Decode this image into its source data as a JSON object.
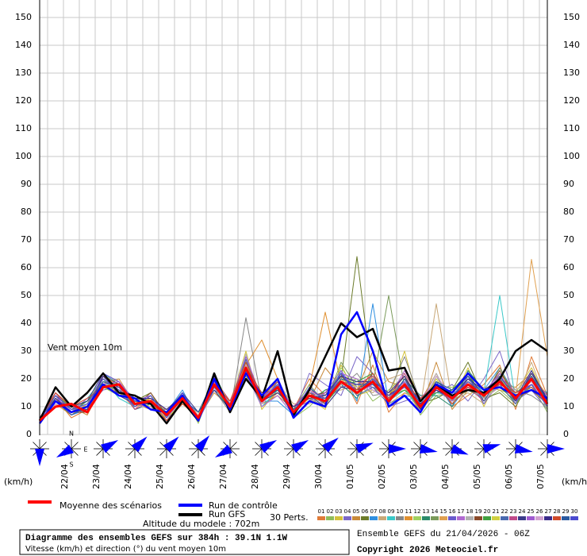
{
  "chart_data": {
    "type": "line",
    "annotation": "Vent moyen 10m",
    "y_unit_left": "(km/h)",
    "y_unit_right": "(km/h)",
    "ylim": [
      0,
      150
    ],
    "yticks": [
      0,
      10,
      20,
      30,
      40,
      50,
      60,
      70,
      80,
      90,
      100,
      110,
      120,
      130,
      140,
      150
    ],
    "date_labels": [
      "22/04",
      "23/04",
      "24/04",
      "25/04",
      "26/04",
      "27/04",
      "28/04",
      "29/04",
      "30/04",
      "01/05",
      "02/05",
      "03/05",
      "04/05",
      "05/05",
      "06/05",
      "07/05"
    ],
    "grid": true,
    "mean": {
      "name": "Moyenne des scénarios",
      "color": "#ff0000",
      "values": [
        5,
        10,
        11,
        8,
        17,
        18,
        11,
        12,
        7,
        13,
        6,
        18,
        10,
        24,
        12,
        17,
        8,
        14,
        12,
        19,
        15,
        19,
        12,
        18,
        10,
        17,
        13,
        18,
        14,
        19,
        13,
        20,
        11
      ]
    },
    "control": {
      "name": "Run de contrôle",
      "color": "#0000ff",
      "values": [
        4,
        12,
        8,
        10,
        18,
        14,
        13,
        9,
        8,
        14,
        5,
        20,
        9,
        22,
        14,
        20,
        6,
        12,
        10,
        36,
        44,
        30,
        10,
        14,
        8,
        18,
        15,
        22,
        16,
        17,
        14,
        16,
        13
      ]
    },
    "gfs": {
      "name": "Run GFS",
      "color": "#000000",
      "values": [
        5,
        17,
        10,
        15,
        22,
        15,
        14,
        11,
        4,
        12,
        5,
        22,
        8,
        20,
        13,
        30,
        7,
        16,
        28,
        40,
        35,
        38,
        23,
        24,
        12,
        18,
        14,
        16,
        15,
        20,
        30,
        34,
        30
      ]
    },
    "perturbations_label": "30 Perts.",
    "series": [
      {
        "name": "01",
        "color": "#e07b39",
        "values": [
          5,
          13,
          6,
          9,
          19,
          16,
          9,
          14,
          5,
          12,
          8,
          16,
          12,
          27,
          10,
          15,
          9,
          20,
          14,
          22,
          11,
          25,
          8,
          15,
          12,
          22,
          10,
          14,
          18,
          25,
          9,
          28,
          14
        ]
      },
      {
        "name": "02",
        "color": "#8fbc5a",
        "values": [
          4,
          12,
          9,
          12,
          20,
          14,
          12,
          10,
          6,
          15,
          4,
          19,
          9,
          23,
          14,
          18,
          6,
          10,
          16,
          18,
          20,
          12,
          16,
          21,
          7,
          14,
          15,
          20,
          12,
          16,
          11,
          18,
          8
        ]
      },
      {
        "name": "03",
        "color": "#d4c23a",
        "values": [
          6,
          14,
          7,
          11,
          21,
          19,
          10,
          13,
          8,
          11,
          7,
          17,
          11,
          30,
          9,
          16,
          10,
          13,
          9,
          25,
          14,
          16,
          13,
          30,
          9,
          20,
          12,
          24,
          10,
          22,
          15,
          24,
          12
        ]
      },
      {
        "name": "04",
        "color": "#7b68c8",
        "values": [
          5,
          11,
          8,
          10,
          16,
          17,
          13,
          12,
          7,
          14,
          5,
          21,
          8,
          22,
          15,
          19,
          7,
          22,
          18,
          14,
          28,
          22,
          10,
          12,
          14,
          15,
          18,
          12,
          20,
          30,
          12,
          16,
          9
        ]
      },
      {
        "name": "05",
        "color": "#c88a3a",
        "values": [
          4,
          15,
          10,
          7,
          18,
          20,
          11,
          9,
          9,
          13,
          6,
          15,
          10,
          26,
          11,
          14,
          9,
          12,
          24,
          17,
          16,
          30,
          19,
          17,
          8,
          26,
          9,
          16,
          14,
          18,
          17,
          22,
          13
        ]
      },
      {
        "name": "06",
        "color": "#6b7b2a",
        "values": [
          6,
          13,
          9,
          12,
          17,
          15,
          12,
          15,
          6,
          12,
          7,
          20,
          12,
          21,
          13,
          20,
          8,
          15,
          12,
          20,
          64,
          18,
          14,
          19,
          11,
          13,
          16,
          26,
          13,
          15,
          10,
          20,
          10
        ]
      },
      {
        "name": "07",
        "color": "#2f8fe0",
        "values": [
          5,
          14,
          7,
          9,
          22,
          18,
          9,
          11,
          8,
          16,
          5,
          18,
          9,
          28,
          12,
          12,
          7,
          14,
          11,
          23,
          12,
          47,
          11,
          14,
          13,
          19,
          10,
          18,
          16,
          24,
          14,
          18,
          15
        ]
      },
      {
        "name": "08",
        "color": "#c8a878",
        "values": [
          5,
          12,
          11,
          10,
          19,
          16,
          14,
          12,
          5,
          11,
          8,
          17,
          11,
          24,
          14,
          18,
          11,
          11,
          15,
          16,
          18,
          15,
          20,
          22,
          10,
          47,
          12,
          15,
          11,
          20,
          13,
          26,
          11
        ]
      },
      {
        "name": "09",
        "color": "#3ac8c8",
        "values": [
          4,
          13,
          8,
          13,
          20,
          13,
          10,
          14,
          7,
          14,
          6,
          22,
          10,
          23,
          10,
          16,
          8,
          16,
          13,
          21,
          15,
          20,
          12,
          16,
          9,
          15,
          14,
          20,
          15,
          50,
          12,
          18,
          12
        ]
      },
      {
        "name": "10",
        "color": "#888888",
        "values": [
          6,
          15,
          9,
          8,
          18,
          19,
          12,
          10,
          9,
          12,
          6,
          16,
          8,
          42,
          12,
          17,
          9,
          13,
          10,
          17,
          22,
          14,
          15,
          28,
          12,
          18,
          11,
          17,
          13,
          22,
          16,
          14,
          10
        ]
      },
      {
        "name": "11",
        "color": "#e09030",
        "values": [
          5,
          11,
          7,
          11,
          21,
          17,
          11,
          13,
          6,
          13,
          7,
          19,
          12,
          25,
          34,
          20,
          7,
          17,
          44,
          18,
          19,
          17,
          13,
          18,
          8,
          16,
          13,
          22,
          12,
          18,
          11,
          22,
          14
        ]
      },
      {
        "name": "12",
        "color": "#a0d060",
        "values": [
          5,
          14,
          10,
          9,
          17,
          14,
          13,
          12,
          8,
          15,
          5,
          18,
          9,
          24,
          13,
          15,
          10,
          14,
          12,
          24,
          16,
          19,
          14,
          16,
          11,
          17,
          17,
          19,
          14,
          17,
          12,
          21,
          9
        ]
      },
      {
        "name": "13",
        "color": "#2a8a6a",
        "values": [
          4,
          12,
          8,
          12,
          19,
          18,
          9,
          11,
          7,
          12,
          8,
          20,
          11,
          22,
          11,
          18,
          6,
          12,
          16,
          18,
          13,
          22,
          12,
          20,
          14,
          14,
          10,
          23,
          16,
          20,
          15,
          19,
          13
        ]
      },
      {
        "name": "14",
        "color": "#7a9a5a",
        "values": [
          6,
          13,
          9,
          10,
          20,
          16,
          12,
          14,
          6,
          14,
          6,
          17,
          10,
          26,
          14,
          16,
          9,
          18,
          11,
          26,
          17,
          18,
          50,
          17,
          9,
          21,
          12,
          16,
          13,
          24,
          13,
          17,
          11
        ]
      },
      {
        "name": "15",
        "color": "#e0a050",
        "values": [
          5,
          14,
          7,
          11,
          18,
          15,
          10,
          12,
          9,
          11,
          7,
          21,
          8,
          27,
          12,
          19,
          8,
          13,
          14,
          20,
          14,
          21,
          11,
          15,
          12,
          18,
          14,
          18,
          17,
          16,
          14,
          63,
          28
        ]
      },
      {
        "name": "16",
        "color": "#6a5acd",
        "values": [
          5,
          12,
          10,
          9,
          22,
          19,
          11,
          10,
          5,
          13,
          5,
          16,
          12,
          23,
          13,
          17,
          10,
          15,
          12,
          17,
          18,
          17,
          15,
          19,
          10,
          16,
          12,
          21,
          11,
          19,
          12,
          18,
          12
        ]
      },
      {
        "name": "17",
        "color": "#b06ad0",
        "values": [
          6,
          15,
          8,
          13,
          17,
          17,
          13,
          13,
          8,
          15,
          6,
          18,
          9,
          22,
          10,
          14,
          7,
          16,
          10,
          22,
          20,
          16,
          13,
          23,
          13,
          19,
          15,
          17,
          15,
          21,
          11,
          23,
          10
        ]
      },
      {
        "name": "18",
        "color": "#b0b0b0",
        "values": [
          4,
          11,
          9,
          10,
          19,
          14,
          12,
          11,
          6,
          12,
          8,
          20,
          11,
          29,
          11,
          20,
          9,
          12,
          13,
          19,
          15,
          20,
          12,
          17,
          11,
          22,
          11,
          20,
          12,
          18,
          16,
          20,
          14
        ]
      },
      {
        "name": "19",
        "color": "#8a4a2a",
        "values": [
          5,
          13,
          8,
          8,
          21,
          18,
          10,
          15,
          7,
          14,
          5,
          19,
          10,
          24,
          15,
          16,
          8,
          14,
          15,
          21,
          16,
          18,
          14,
          21,
          9,
          17,
          13,
          19,
          14,
          23,
          13,
          16,
          11
        ]
      },
      {
        "name": "20",
        "color": "#40a040",
        "values": [
          6,
          14,
          10,
          12,
          18,
          16,
          11,
          12,
          8,
          13,
          6,
          17,
          9,
          25,
          12,
          18,
          6,
          17,
          11,
          18,
          19,
          22,
          13,
          16,
          12,
          15,
          16,
          22,
          13,
          17,
          12,
          22,
          12
        ]
      },
      {
        "name": "21",
        "color": "#d0d040",
        "values": [
          5,
          12,
          7,
          11,
          20,
          15,
          12,
          10,
          6,
          11,
          7,
          21,
          11,
          23,
          13,
          15,
          9,
          13,
          12,
          20,
          17,
          19,
          15,
          18,
          10,
          20,
          12,
          18,
          15,
          20,
          14,
          19,
          10
        ]
      },
      {
        "name": "22",
        "color": "#4a6ab0",
        "values": [
          4,
          13,
          9,
          10,
          17,
          18,
          13,
          13,
          9,
          14,
          6,
          18,
          10,
          27,
          11,
          19,
          8,
          15,
          14,
          22,
          14,
          17,
          11,
          20,
          11,
          18,
          14,
          20,
          16,
          18,
          11,
          21,
          13
        ]
      },
      {
        "name": "23",
        "color": "#c04a8a",
        "values": [
          6,
          15,
          8,
          9,
          19,
          17,
          9,
          12,
          7,
          12,
          5,
          20,
          12,
          24,
          14,
          17,
          10,
          16,
          13,
          19,
          18,
          21,
          12,
          22,
          13,
          16,
          13,
          17,
          12,
          21,
          15,
          18,
          11
        ]
      },
      {
        "name": "24",
        "color": "#3a3a8a",
        "values": [
          5,
          12,
          10,
          12,
          22,
          14,
          11,
          11,
          8,
          15,
          8,
          16,
          9,
          22,
          12,
          16,
          7,
          14,
          10,
          17,
          16,
          20,
          14,
          18,
          9,
          19,
          15,
          21,
          14,
          19,
          13,
          23,
          12
        ]
      },
      {
        "name": "25",
        "color": "#a05ad0",
        "values": [
          5,
          14,
          7,
          10,
          18,
          19,
          12,
          14,
          6,
          13,
          6,
          19,
          11,
          28,
          13,
          18,
          9,
          12,
          15,
          23,
          15,
          18,
          13,
          19,
          12,
          17,
          12,
          19,
          15,
          22,
          12,
          20,
          14
        ]
      },
      {
        "name": "26",
        "color": "#d0a0d0",
        "values": [
          6,
          11,
          9,
          11,
          20,
          16,
          10,
          10,
          7,
          12,
          7,
          17,
          10,
          25,
          11,
          17,
          8,
          16,
          12,
          18,
          17,
          16,
          12,
          17,
          10,
          21,
          14,
          18,
          13,
          17,
          14,
          19,
          10
        ]
      },
      {
        "name": "27",
        "color": "#3a2a8a",
        "values": [
          4,
          13,
          8,
          9,
          21,
          15,
          13,
          13,
          9,
          14,
          5,
          21,
          9,
          23,
          12,
          15,
          10,
          13,
          14,
          21,
          19,
          19,
          15,
          21,
          11,
          16,
          13,
          20,
          16,
          20,
          12,
          22,
          13
        ]
      },
      {
        "name": "28",
        "color": "#d04a2a",
        "values": [
          5,
          15,
          10,
          13,
          17,
          18,
          11,
          12,
          5,
          11,
          6,
          18,
          12,
          26,
          14,
          19,
          7,
          15,
          11,
          19,
          16,
          22,
          13,
          18,
          13,
          18,
          11,
          17,
          14,
          18,
          15,
          17,
          11
        ]
      },
      {
        "name": "29",
        "color": "#2a5aa0",
        "values": [
          6,
          12,
          7,
          10,
          19,
          17,
          12,
          11,
          8,
          13,
          8,
          20,
          10,
          24,
          13,
          16,
          9,
          14,
          13,
          20,
          18,
          18,
          12,
          20,
          10,
          19,
          16,
          21,
          12,
          21,
          13,
          21,
          12
        ]
      },
      {
        "name": "30",
        "color": "#4a4ad0",
        "values": [
          5,
          14,
          9,
          11,
          20,
          16,
          10,
          14,
          6,
          15,
          6,
          17,
          11,
          22,
          12,
          18,
          8,
          17,
          12,
          22,
          15,
          20,
          14,
          17,
          12,
          17,
          14,
          19,
          15,
          19,
          14,
          18,
          10
        ]
      }
    ],
    "wind_direction": [
      180,
      240,
      60,
      45,
      45,
      40,
      240,
      60,
      60,
      50,
      70,
      90,
      100,
      110,
      75,
      100,
      90
    ],
    "compass_labels": [
      "N",
      "S",
      "E"
    ],
    "altitude": "Altitude du modele : 702m",
    "footer_title": "Diagramme des ensembles GEFS sur 384h : 39.1N 1.1W",
    "footer_subtitle": "Vitesse (km/h) et direction (°) du vent moyen 10m",
    "run_info": "Ensemble GEFS du 21/04/2026 - 06Z",
    "copyright": "Copyright 2026 Meteociel.fr"
  }
}
